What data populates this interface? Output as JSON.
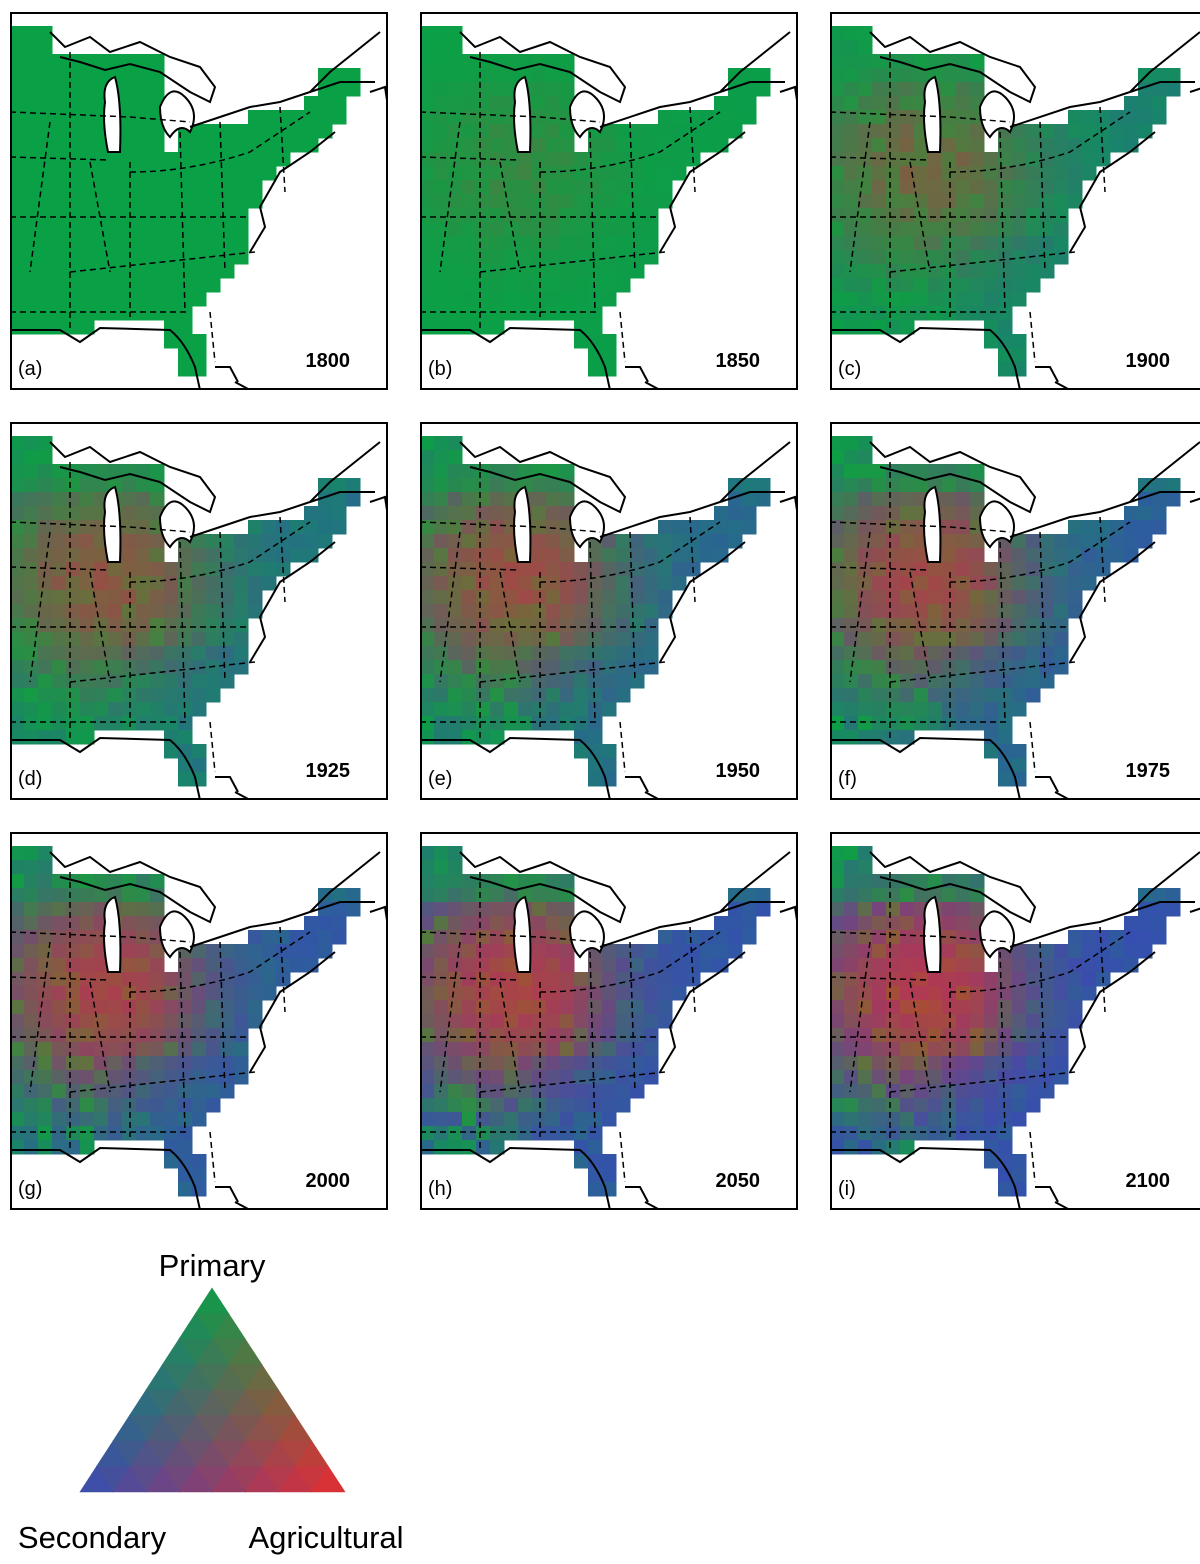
{
  "panels": [
    {
      "label": "(a)",
      "year": "1800"
    },
    {
      "label": "(b)",
      "year": "1850"
    },
    {
      "label": "(c)",
      "year": "1900"
    },
    {
      "label": "(d)",
      "year": "1925"
    },
    {
      "label": "(e)",
      "year": "1950"
    },
    {
      "label": "(f)",
      "year": "1975"
    },
    {
      "label": "(g)",
      "year": "2000"
    },
    {
      "label": "(h)",
      "year": "2050"
    },
    {
      "label": "(i)",
      "year": "2100"
    }
  ],
  "legend": {
    "top": "Primary",
    "left": "Secondary",
    "right": "Agricultural"
  }
}
